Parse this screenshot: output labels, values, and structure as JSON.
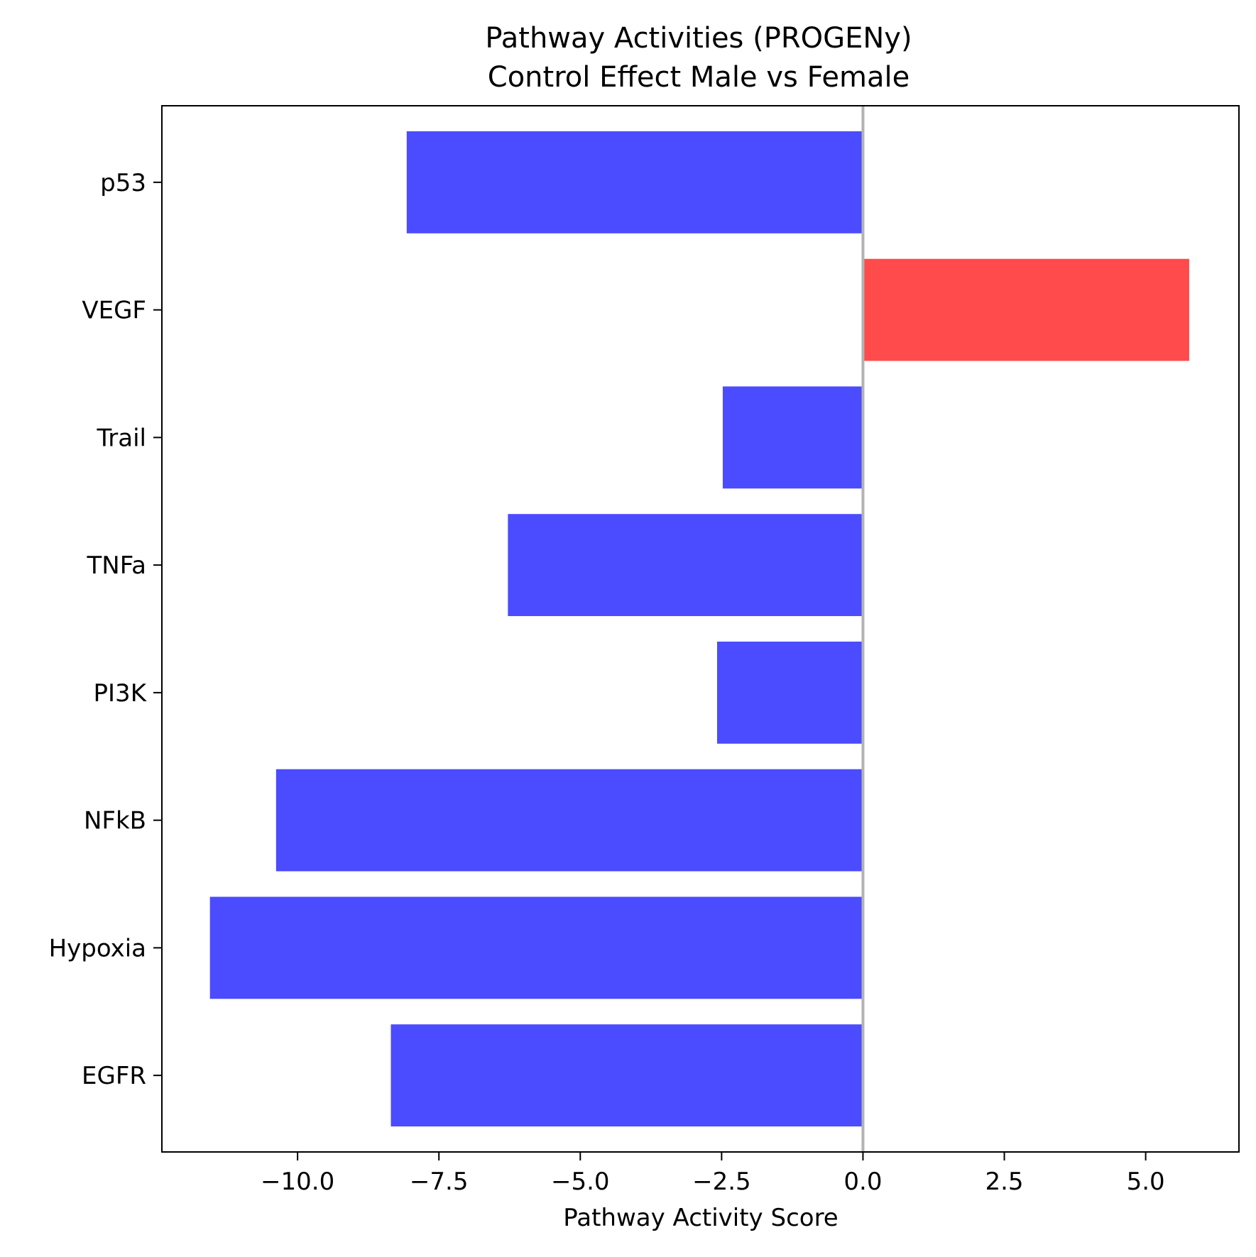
{
  "chart_data": {
    "type": "bar",
    "orientation": "horizontal",
    "title": "Pathway Activities (PROGENy)\nControl Effect Male vs Female",
    "title_lines": [
      "Pathway Activities (PROGENy)",
      "Control Effect Male vs Female"
    ],
    "xlabel": "Pathway Activity Score",
    "ylabel": "",
    "categories": [
      "EGFR",
      "Hypoxia",
      "NFkB",
      "PI3K",
      "TNFa",
      "Trail",
      "VEGF",
      "p53"
    ],
    "values": [
      -8.35,
      -11.55,
      -10.38,
      -2.58,
      -6.28,
      -2.48,
      5.77,
      -8.07
    ],
    "xlim": [
      -12.4,
      6.65
    ],
    "xticks": [
      -10.0,
      -7.5,
      -5.0,
      -2.5,
      0.0,
      2.5,
      5.0
    ],
    "xtick_labels": [
      "−10.0",
      "−7.5",
      "−5.0",
      "−2.5",
      "0.0",
      "2.5",
      "5.0"
    ],
    "zero_line": true,
    "grid": false,
    "colors": {
      "negative": "#4b4bff",
      "positive": "#ff4b4b",
      "zero_line": "#b3b3b3",
      "axes": "#000000"
    }
  }
}
